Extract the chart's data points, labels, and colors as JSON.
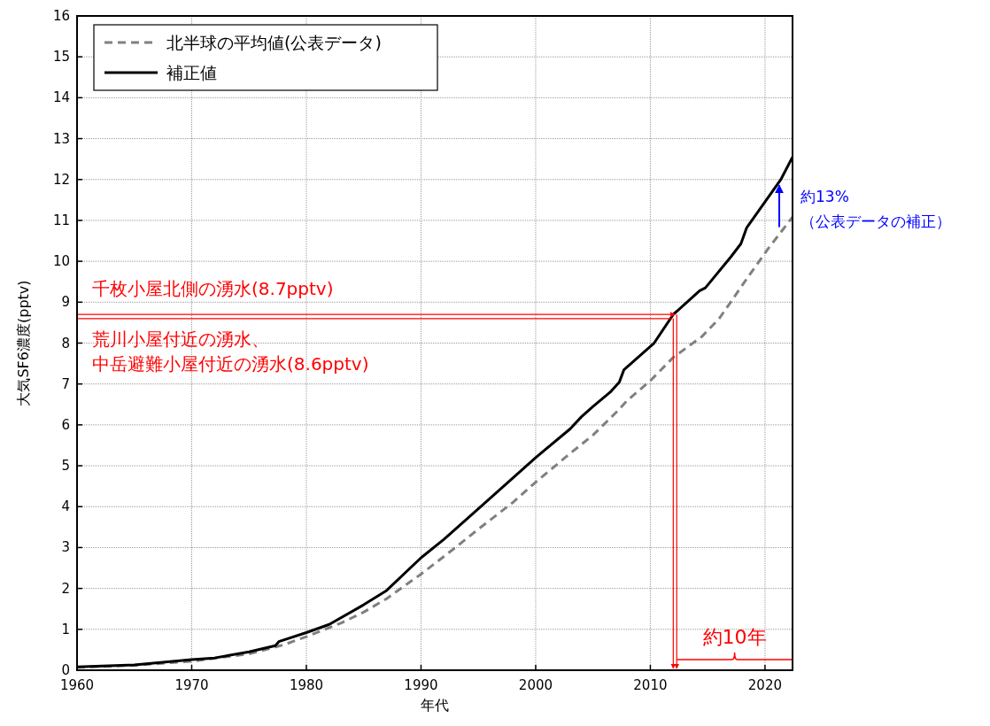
{
  "chart_data": {
    "type": "line",
    "xlabel": "年代",
    "ylabel": "大気SF6濃度(pptv)",
    "xlim": [
      1960,
      2022.4
    ],
    "ylim": [
      0,
      16
    ],
    "xticks": [
      1960,
      1970,
      1980,
      1990,
      2000,
      2010,
      2020
    ],
    "yticks": [
      0,
      1,
      2,
      3,
      4,
      5,
      6,
      7,
      8,
      9,
      10,
      11,
      12,
      13,
      14,
      15,
      16
    ],
    "grid": true,
    "legend": "top left",
    "marker": "none",
    "series": [
      {
        "name": "北半球の平均値(公表データ)",
        "color": "#808080",
        "line_style": "dashed",
        "x": [
          1960,
          1965,
          1970,
          1975,
          1978,
          1980,
          1983,
          1985,
          1987,
          1990,
          1993,
          1995,
          1998,
          2000,
          2003,
          2005,
          2007,
          2008,
          2010,
          2012,
          2014.5,
          2016,
          2017,
          2018.4,
          2020.3,
          2022.4
        ],
        "values": [
          0.07,
          0.12,
          0.22,
          0.4,
          0.62,
          0.82,
          1.15,
          1.42,
          1.75,
          2.35,
          3.0,
          3.45,
          4.1,
          4.6,
          5.3,
          5.75,
          6.3,
          6.6,
          7.08,
          7.65,
          8.16,
          8.6,
          9.0,
          9.57,
          10.32,
          11.08
        ]
      },
      {
        "name": "補正値",
        "color": "#000000",
        "line_style": "solid",
        "x": [
          1960,
          1965,
          1970,
          1972,
          1975,
          1977.3,
          1977.6,
          1980,
          1982,
          1985,
          1987,
          1990,
          1992,
          1995,
          2000,
          2003,
          2004,
          2005,
          2006.5,
          2007.3,
          2007.7,
          2010.3,
          2012,
          2014.3,
          2014.8,
          2017,
          2017.9,
          2018.4,
          2021.4,
          2022.4
        ],
        "values": [
          0.08,
          0.13,
          0.26,
          0.3,
          0.45,
          0.6,
          0.7,
          0.92,
          1.12,
          1.6,
          1.95,
          2.75,
          3.2,
          3.95,
          5.2,
          5.9,
          6.2,
          6.45,
          6.8,
          7.05,
          7.35,
          7.99,
          8.7,
          9.28,
          9.35,
          10.1,
          10.43,
          10.82,
          12.01,
          12.55
        ]
      }
    ],
    "annotations": [
      {
        "text": "千枚小屋北側の湧水(8.7pptv)",
        "x": 2012.3,
        "y": 8.7
      },
      {
        "text": "荒川小屋付近の湧水、中岳避難小屋付近の湧水(8.6pptv)",
        "x": 2012,
        "y": 8.6
      },
      "約10年",
      "約13%（公表データの補正）"
    ]
  }
}
